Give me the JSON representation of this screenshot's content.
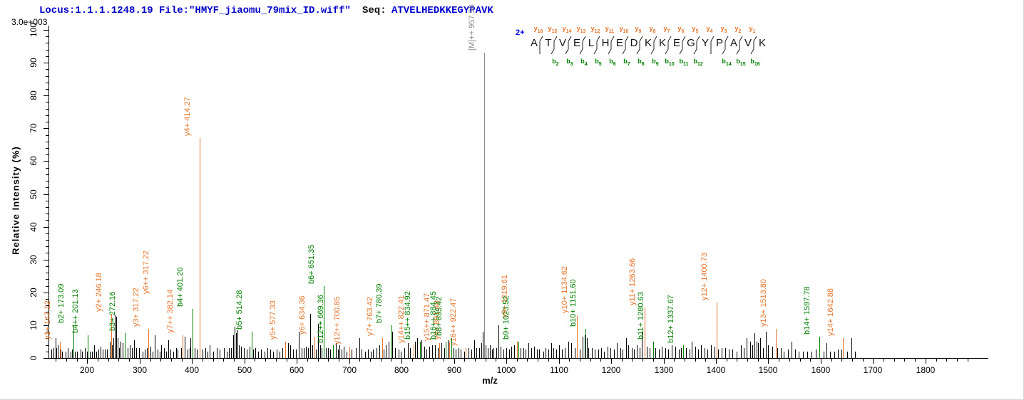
{
  "header": {
    "locus_file": "Locus:1.1.1.1248.19 File:\"HMYF_jiaomu_79mix_ID.wiff\"",
    "seq_label": "Seq:",
    "sequence": "ATVELHEDKKEGYPAVK",
    "max_intensity": "3.0e+003"
  },
  "peptide_panel": {
    "charge": "2+",
    "residues": [
      "A",
      "T",
      "V",
      "E",
      "L",
      "H",
      "E",
      "D",
      "K",
      "K",
      "E",
      "G",
      "Y",
      "P",
      "A",
      "V",
      "K"
    ],
    "y_ions": [
      "y16",
      "y15",
      "y14",
      "y13",
      "y12",
      "y11",
      "y10",
      "y9",
      "y8",
      "y7",
      "y6",
      "y5",
      "y4",
      "y3",
      "y2",
      "y1"
    ],
    "b_ions": [
      [
        2,
        "b2"
      ],
      [
        3,
        "b3"
      ],
      [
        4,
        "b4"
      ],
      [
        5,
        "b5"
      ],
      [
        6,
        "b6"
      ],
      [
        7,
        "b7"
      ],
      [
        8,
        "b8"
      ],
      [
        9,
        "b9"
      ],
      [
        10,
        "b10"
      ],
      [
        11,
        "b11"
      ],
      [
        12,
        "b12"
      ],
      [
        14,
        "b14"
      ],
      [
        15,
        "b15"
      ],
      [
        16,
        "b16"
      ]
    ]
  },
  "colors": {
    "y_series": "#e8762c",
    "b_series": "#008000",
    "peak_black": "#000000",
    "precursor_gray": "#8a8a8a",
    "header_blue": "#0000c8",
    "charge_blue": "#0000ee"
  },
  "chart_data": {
    "type": "bar",
    "subtype": "ms2-fragment-mass-spectrum",
    "xlabel": "m/z",
    "ylabel": "Relative  Intensity (%)",
    "xlim": [
      126,
      1920
    ],
    "ylim": [
      0,
      100
    ],
    "x_major_ticks": [
      200,
      300,
      400,
      500,
      600,
      700,
      800,
      900,
      1000,
      1100,
      1200,
      1300,
      1400,
      1500,
      1600,
      1700,
      1800
    ],
    "x_minor_step": 20,
    "y_major_ticks": [
      0,
      10,
      20,
      30,
      40,
      50,
      60,
      70,
      80,
      90,
      100
    ],
    "y_minor_step": 2,
    "grid": false,
    "precursor": {
      "label": "[M]++ 957.50",
      "mz": 957.5,
      "marker_intensity": 93
    },
    "annotated_peaks": [
      {
        "label": "y1+ 147.12",
        "series": "y",
        "mz": 147.12,
        "intensity": 5
      },
      {
        "label": "y2+ 246.18",
        "series": "y",
        "mz": 246.18,
        "intensity": 13.5
      },
      {
        "label": "y3+ 317.22",
        "series": "y",
        "mz": 317.22,
        "intensity": 9
      },
      {
        "label": "y6++ 317.22",
        "series": "y",
        "mz": 317.22,
        "intensity": 9,
        "dx": 14,
        "dy": -46,
        "no_line": true
      },
      {
        "label": "y7++ 382.14",
        "series": "y",
        "mz": 382.14,
        "intensity": 7
      },
      {
        "label": "y4+ 414.27",
        "series": "y",
        "mz": 414.27,
        "intensity": 67
      },
      {
        "label": "y5+ 577.33",
        "series": "y",
        "mz": 577.33,
        "intensity": 5
      },
      {
        "label": "y6+ 634.36",
        "series": "y",
        "mz": 634.36,
        "intensity": 6.5
      },
      {
        "label": "y12++ 700.85",
        "series": "y",
        "mz": 700.85,
        "intensity": 3.5
      },
      {
        "label": "y7+ 763.42",
        "series": "y",
        "mz": 763.42,
        "intensity": 6
      },
      {
        "label": "y14++ 822.41",
        "series": "y",
        "mz": 822.41,
        "intensity": 4
      },
      {
        "label": "y15++ 871.47",
        "series": "y",
        "mz": 871.47,
        "intensity": 4.5
      },
      {
        "label": "y8+ 891.48",
        "series": "y",
        "mz": 891.48,
        "intensity": 5
      },
      {
        "label": "y16++ 922.47",
        "series": "y",
        "mz": 922.47,
        "intensity": 3
      },
      {
        "label": "y9+ 1019.61",
        "series": "y",
        "mz": 1019.61,
        "intensity": 5,
        "dy": -30
      },
      {
        "label": "y10+ 1134.62",
        "series": "y",
        "mz": 1134.62,
        "intensity": 13
      },
      {
        "label": "y11+ 1263.66",
        "series": "y",
        "mz": 1263.66,
        "intensity": 15.5
      },
      {
        "label": "y12+ 1400.73",
        "series": "y",
        "mz": 1400.73,
        "intensity": 17
      },
      {
        "label": "y13+ 1513.80",
        "series": "y",
        "mz": 1513.8,
        "intensity": 9
      },
      {
        "label": "y14+ 1642.88",
        "series": "y",
        "mz": 1642.88,
        "intensity": 6
      },
      {
        "label": "b2+ 173.09",
        "series": "b",
        "mz": 173.09,
        "intensity": 10
      },
      {
        "label": "b4++ 201.13",
        "series": "b",
        "mz": 201.13,
        "intensity": 7
      },
      {
        "label": "b3+ 272.16",
        "series": "b",
        "mz": 272.16,
        "intensity": 7.5
      },
      {
        "label": "b4+ 401.20",
        "series": "b",
        "mz": 401.2,
        "intensity": 15
      },
      {
        "label": "b5+ 514.28",
        "series": "b",
        "mz": 514.28,
        "intensity": 8
      },
      {
        "label": "b6+ 651.35",
        "series": "b",
        "mz": 651.35,
        "intensity": 22
      },
      {
        "label": "b12++ 669.36",
        "series": "b",
        "mz": 669.36,
        "intensity": 4
      },
      {
        "label": "b7+ 780.39",
        "series": "b",
        "mz": 780.39,
        "intensity": 10
      },
      {
        "label": "b15++ 834.92",
        "series": "b",
        "mz": 834.92,
        "intensity": 5
      },
      {
        "label": "b16++ 884.45",
        "series": "b",
        "mz": 884.45,
        "intensity": 5
      },
      {
        "label": "b8+ 895.42",
        "series": "b",
        "mz": 895.42,
        "intensity": 6
      },
      {
        "label": "b9+ 1023.52",
        "series": "b",
        "mz": 1023.52,
        "intensity": 5
      },
      {
        "label": "b10+ 1151.60",
        "series": "b",
        "mz": 1151.6,
        "intensity": 9
      },
      {
        "label": "b11+ 1280.63",
        "series": "b",
        "mz": 1280.63,
        "intensity": 5
      },
      {
        "label": "b12+ 1337.67",
        "series": "b",
        "mz": 1337.67,
        "intensity": 4
      },
      {
        "label": "b14+ 1597.78",
        "series": "b",
        "mz": 1597.78,
        "intensity": 6.5
      }
    ],
    "unlabeled_peaks": [
      [
        131,
        2.5
      ],
      [
        135,
        3
      ],
      [
        139,
        6
      ],
      [
        141,
        3
      ],
      [
        144,
        4
      ],
      [
        149,
        2.5
      ],
      [
        152,
        2
      ],
      [
        158,
        2
      ],
      [
        163,
        3
      ],
      [
        168,
        2
      ],
      [
        171,
        2.5
      ],
      [
        176,
        2
      ],
      [
        181,
        2
      ],
      [
        187,
        2.5
      ],
      [
        190,
        2
      ],
      [
        196,
        3
      ],
      [
        199,
        2
      ],
      [
        205,
        2
      ],
      [
        209,
        2
      ],
      [
        213,
        4
      ],
      [
        217,
        2
      ],
      [
        221,
        2.5
      ],
      [
        226,
        3.5
      ],
      [
        230,
        2.5
      ],
      [
        234,
        2.5
      ],
      [
        238,
        2.5
      ],
      [
        243,
        5
      ],
      [
        247,
        4
      ],
      [
        250,
        6
      ],
      [
        252,
        13
      ],
      [
        255,
        12.5
      ],
      [
        258,
        6
      ],
      [
        261,
        3
      ],
      [
        264,
        5
      ],
      [
        268,
        4.5
      ],
      [
        277,
        3
      ],
      [
        281,
        4
      ],
      [
        285,
        3
      ],
      [
        289,
        5.5
      ],
      [
        293,
        3
      ],
      [
        299,
        3
      ],
      [
        305,
        2
      ],
      [
        310,
        2.5
      ],
      [
        314,
        3
      ],
      [
        321,
        3.5
      ],
      [
        325,
        2
      ],
      [
        329,
        7
      ],
      [
        334,
        2.5
      ],
      [
        338,
        2
      ],
      [
        341,
        4
      ],
      [
        347,
        3
      ],
      [
        351,
        2
      ],
      [
        355,
        5.5
      ],
      [
        359,
        2.5
      ],
      [
        364,
        2
      ],
      [
        369,
        3
      ],
      [
        373,
        2.5
      ],
      [
        379,
        3
      ],
      [
        386,
        6.5
      ],
      [
        391,
        2.5
      ],
      [
        395,
        3
      ],
      [
        397,
        6
      ],
      [
        405,
        3
      ],
      [
        409,
        2.5
      ],
      [
        420,
        2.5
      ],
      [
        425,
        3
      ],
      [
        430,
        2
      ],
      [
        434,
        4
      ],
      [
        440,
        2
      ],
      [
        447,
        3
      ],
      [
        453,
        2.5
      ],
      [
        461,
        3
      ],
      [
        466,
        2
      ],
      [
        470,
        3
      ],
      [
        475,
        3
      ],
      [
        478,
        7
      ],
      [
        481,
        9.5
      ],
      [
        484,
        7.5
      ],
      [
        487,
        8.5
      ],
      [
        490,
        4
      ],
      [
        494,
        3.5
      ],
      [
        499,
        3
      ],
      [
        505,
        2.5
      ],
      [
        510,
        3.5
      ],
      [
        517,
        2.5
      ],
      [
        521,
        3
      ],
      [
        526,
        2
      ],
      [
        532,
        2.5
      ],
      [
        538,
        2
      ],
      [
        544,
        3
      ],
      [
        549,
        2.5
      ],
      [
        555,
        2
      ],
      [
        561,
        2.5
      ],
      [
        567,
        2
      ],
      [
        572,
        3
      ],
      [
        583,
        4.5
      ],
      [
        588,
        4
      ],
      [
        593,
        2.5
      ],
      [
        598,
        2.5
      ],
      [
        604,
        8
      ],
      [
        609,
        3
      ],
      [
        613,
        3
      ],
      [
        618,
        3.5
      ],
      [
        622,
        3
      ],
      [
        626,
        13.5
      ],
      [
        630,
        4
      ],
      [
        637,
        2.5
      ],
      [
        640,
        10.5
      ],
      [
        645,
        4
      ],
      [
        648,
        3
      ],
      [
        655,
        3
      ],
      [
        660,
        3
      ],
      [
        664,
        2.5
      ],
      [
        674,
        4.5
      ],
      [
        678,
        2.5
      ],
      [
        681,
        4
      ],
      [
        686,
        2.5
      ],
      [
        690,
        3.5
      ],
      [
        695,
        2
      ],
      [
        705,
        2.5
      ],
      [
        712,
        3
      ],
      [
        719,
        6
      ],
      [
        724,
        2.5
      ],
      [
        731,
        2
      ],
      [
        736,
        2.5
      ],
      [
        741,
        2
      ],
      [
        746,
        2.5
      ],
      [
        752,
        3
      ],
      [
        758,
        4
      ],
      [
        766,
        2.5
      ],
      [
        770,
        4
      ],
      [
        775,
        5
      ],
      [
        782,
        8
      ],
      [
        788,
        3
      ],
      [
        794,
        2.5
      ],
      [
        799,
        2
      ],
      [
        805,
        3
      ],
      [
        812,
        4.5
      ],
      [
        816,
        3
      ],
      [
        826,
        5
      ],
      [
        830,
        6
      ],
      [
        838,
        5.5
      ],
      [
        843,
        3.5
      ],
      [
        848,
        2.5
      ],
      [
        853,
        3.5
      ],
      [
        858,
        4
      ],
      [
        864,
        4
      ],
      [
        869,
        3
      ],
      [
        876,
        4.5
      ],
      [
        881,
        3
      ],
      [
        888,
        5.5
      ],
      [
        899,
        3
      ],
      [
        903,
        2.5
      ],
      [
        908,
        3
      ],
      [
        913,
        2.5
      ],
      [
        919,
        2
      ],
      [
        928,
        3
      ],
      [
        933,
        2.5
      ],
      [
        938,
        5.5
      ],
      [
        943,
        3
      ],
      [
        948,
        3
      ],
      [
        952,
        4.5
      ],
      [
        955,
        8
      ],
      [
        957.5,
        13.5
      ],
      [
        960,
        4
      ],
      [
        964,
        3
      ],
      [
        968,
        4
      ],
      [
        972,
        2.5
      ],
      [
        976,
        3
      ],
      [
        981,
        3
      ],
      [
        985,
        10
      ],
      [
        989,
        3.5
      ],
      [
        994,
        2.5
      ],
      [
        1000,
        3
      ],
      [
        1005,
        2.5
      ],
      [
        1010,
        3.5
      ],
      [
        1015,
        4
      ],
      [
        1027,
        3
      ],
      [
        1032,
        3
      ],
      [
        1037,
        2.5
      ],
      [
        1042,
        4.5
      ],
      [
        1048,
        3
      ],
      [
        1053,
        3.5
      ],
      [
        1058,
        2.5
      ],
      [
        1063,
        2.5
      ],
      [
        1070,
        2
      ],
      [
        1075,
        3
      ],
      [
        1080,
        2.5
      ],
      [
        1085,
        4.5
      ],
      [
        1090,
        3
      ],
      [
        1095,
        2.5
      ],
      [
        1101,
        4
      ],
      [
        1106,
        2.5
      ],
      [
        1111,
        3
      ],
      [
        1118,
        5
      ],
      [
        1124,
        4.5
      ],
      [
        1130,
        3
      ],
      [
        1140,
        2.5
      ],
      [
        1146,
        6.5
      ],
      [
        1149,
        7
      ],
      [
        1153,
        6
      ],
      [
        1157,
        3
      ],
      [
        1163,
        3
      ],
      [
        1169,
        2.5
      ],
      [
        1175,
        2.5
      ],
      [
        1181,
        3
      ],
      [
        1187,
        2
      ],
      [
        1193,
        3.5
      ],
      [
        1199,
        3
      ],
      [
        1205,
        2.5
      ],
      [
        1211,
        4.5
      ],
      [
        1217,
        3
      ],
      [
        1222,
        2.5
      ],
      [
        1228,
        6
      ],
      [
        1233,
        4
      ],
      [
        1239,
        3
      ],
      [
        1244,
        2.5
      ],
      [
        1249,
        4
      ],
      [
        1254,
        3
      ],
      [
        1259,
        8
      ],
      [
        1268,
        3.5
      ],
      [
        1274,
        3
      ],
      [
        1284,
        3
      ],
      [
        1291,
        2.5
      ],
      [
        1297,
        3.5
      ],
      [
        1303,
        3
      ],
      [
        1309,
        2.5
      ],
      [
        1316,
        4
      ],
      [
        1322,
        3.5
      ],
      [
        1329,
        2.5
      ],
      [
        1334,
        3
      ],
      [
        1343,
        3
      ],
      [
        1349,
        2.5
      ],
      [
        1354,
        5
      ],
      [
        1360,
        3.5
      ],
      [
        1366,
        2.5
      ],
      [
        1372,
        4
      ],
      [
        1378,
        3
      ],
      [
        1384,
        2.5
      ],
      [
        1391,
        4
      ],
      [
        1397,
        3.5
      ],
      [
        1404,
        2.5
      ],
      [
        1411,
        3
      ],
      [
        1418,
        3
      ],
      [
        1424,
        2.5
      ],
      [
        1432,
        2.5
      ],
      [
        1440,
        2
      ],
      [
        1447,
        4
      ],
      [
        1453,
        3
      ],
      [
        1459,
        6
      ],
      [
        1465,
        5
      ],
      [
        1470,
        4
      ],
      [
        1473,
        7.5
      ],
      [
        1477,
        5
      ],
      [
        1481,
        4.5
      ],
      [
        1485,
        6
      ],
      [
        1490,
        3
      ],
      [
        1496,
        8
      ],
      [
        1500,
        4
      ],
      [
        1507,
        3.5
      ],
      [
        1517,
        3
      ],
      [
        1524,
        3
      ],
      [
        1530,
        2
      ],
      [
        1537,
        2.5
      ],
      [
        1545,
        5
      ],
      [
        1551,
        2.5
      ],
      [
        1558,
        2
      ],
      [
        1566,
        2
      ],
      [
        1574,
        2
      ],
      [
        1582,
        2
      ],
      [
        1590,
        2.5
      ],
      [
        1605,
        2
      ],
      [
        1611,
        4.5
      ],
      [
        1618,
        2
      ],
      [
        1626,
        2
      ],
      [
        1633,
        2.5
      ],
      [
        1640,
        2.5
      ],
      [
        1650,
        2
      ],
      [
        1658,
        6
      ],
      [
        1666,
        2
      ]
    ]
  }
}
